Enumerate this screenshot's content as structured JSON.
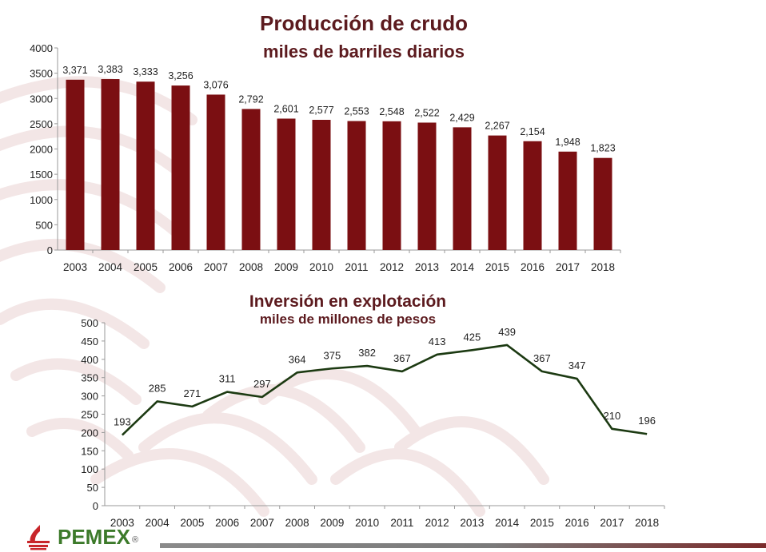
{
  "colors": {
    "bar": "#7b0f12",
    "line": "#1c3a12",
    "title": "#5c1a1e",
    "brand_green": "#3c7a2a",
    "brand_red": "#c8262b"
  },
  "footer": {
    "brand": "PEMEX",
    "registered": "®",
    "logo_icon": "pemex-flame-logo-icon"
  },
  "chart_data": [
    {
      "type": "bar",
      "title": "Producción de crudo",
      "subtitle": "miles de barriles diarios",
      "categories": [
        "2003",
        "2004",
        "2005",
        "2006",
        "2007",
        "2008",
        "2009",
        "2010",
        "2011",
        "2012",
        "2013",
        "2014",
        "2015",
        "2016",
        "2017",
        "2018"
      ],
      "values": [
        3371,
        3383,
        3333,
        3256,
        3076,
        2792,
        2601,
        2577,
        2553,
        2548,
        2522,
        2429,
        2267,
        2154,
        1948,
        1823
      ],
      "data_labels": [
        "3,371",
        "3,383",
        "3,333",
        "3,256",
        "3,076",
        "2,792",
        "2,601",
        "2,577",
        "2,553",
        "2,548",
        "2,522",
        "2,429",
        "2,267",
        "2,154",
        "1,948",
        "1,823"
      ],
      "ylim": [
        0,
        4000
      ],
      "yticks": [
        0,
        500,
        1000,
        1500,
        2000,
        2500,
        3000,
        3500,
        4000
      ],
      "grid": false,
      "legend": "none"
    },
    {
      "type": "line",
      "title": "Inversión en explotación",
      "subtitle": "miles de millones de pesos",
      "categories": [
        "2003",
        "2004",
        "2005",
        "2006",
        "2007",
        "2008",
        "2009",
        "2010",
        "2011",
        "2012",
        "2013",
        "2014",
        "2015",
        "2016",
        "2017",
        "2018"
      ],
      "values": [
        193,
        285,
        271,
        311,
        297,
        364,
        375,
        382,
        367,
        413,
        425,
        439,
        367,
        347,
        210,
        196
      ],
      "data_labels": [
        "193",
        "285",
        "271",
        "311",
        "297",
        "364",
        "375",
        "382",
        "367",
        "413",
        "425",
        "439",
        "367",
        "347",
        "210",
        "196"
      ],
      "ylim": [
        0,
        500
      ],
      "yticks": [
        0,
        50,
        100,
        150,
        200,
        250,
        300,
        350,
        400,
        450,
        500
      ],
      "grid": false,
      "legend": "none"
    }
  ]
}
